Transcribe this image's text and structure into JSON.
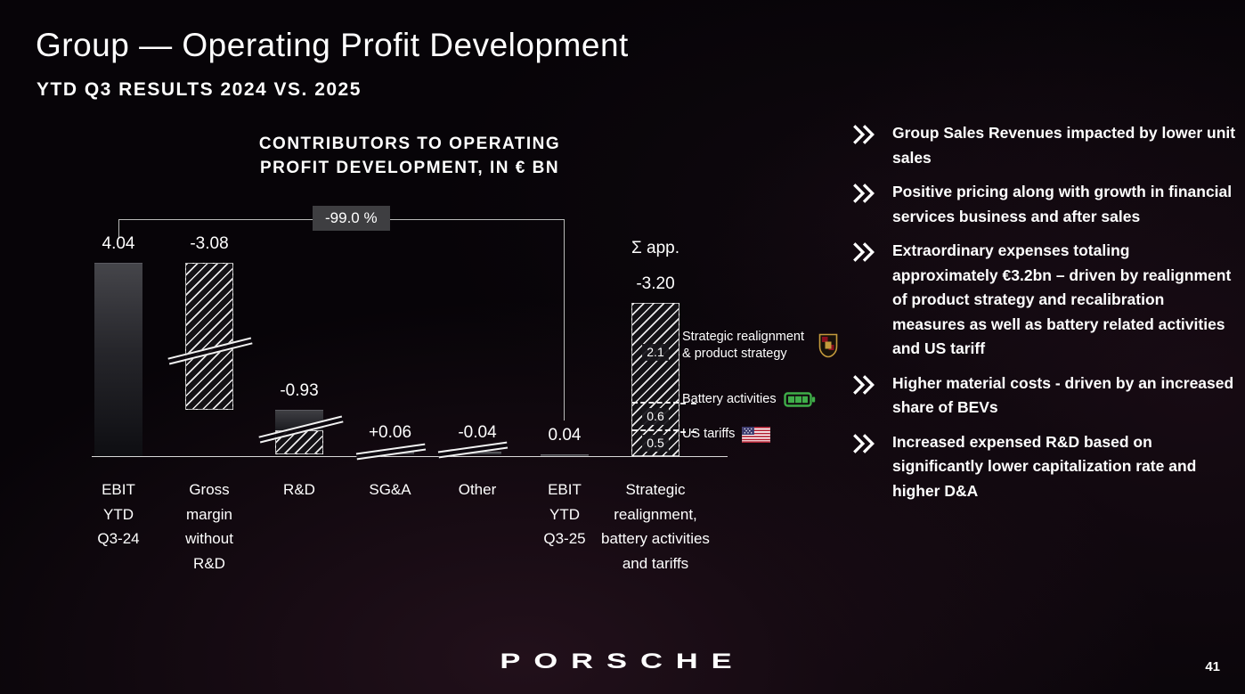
{
  "slide": {
    "title": "Group — Operating Profit Development",
    "subtitle": "YTD Q3 RESULTS 2024 VS. 2025",
    "page_number": "41",
    "logo_text": "PORSCHE"
  },
  "chart_data": {
    "type": "bar",
    "subtype": "waterfall",
    "title_lines": [
      "CONTRIBUTORS TO OPERATING",
      "PROFIT DEVELOPMENT, IN € BN"
    ],
    "unit": "€ bn",
    "categories": [
      "EBIT YTD Q3-24",
      "Gross margin without R&D",
      "R&D",
      "SG&A",
      "Other",
      "EBIT YTD Q3-25",
      "Strategic realignment, battery activities and tariffs"
    ],
    "values": [
      4.04,
      -3.08,
      -0.93,
      0.06,
      -0.04,
      0.04,
      -3.2
    ],
    "kinds": [
      "abs",
      "delta",
      "delta",
      "delta",
      "delta",
      "abs",
      "sum"
    ],
    "value_labels": [
      "4.04",
      "-3.08",
      "-0.93",
      "+0.06",
      "-0.04",
      "0.04",
      "-3.20"
    ],
    "sigma_label": "Σ app.",
    "bracket_label": "-99.0 %",
    "axis_range": [
      0,
      4.04
    ],
    "grid": false,
    "sum_bar": {
      "segments": [
        {
          "value": 2.1,
          "label": "2.1",
          "annotation": "Strategic realignment & product strategy",
          "icon": "porsche-crest-icon"
        },
        {
          "value": 0.6,
          "label": "0.6",
          "annotation": "Battery activities",
          "icon": "battery-icon"
        },
        {
          "value": 0.5,
          "label": "0.5",
          "annotation": "US tariffs",
          "icon": "us-flag-icon"
        }
      ]
    }
  },
  "bullets": [
    "Group Sales Revenues impacted by lower unit sales",
    "Positive pricing along with growth in financial services business and after sales",
    "Extraordinary expenses totaling approximately €3.2bn – driven by realignment of product strategy and recalibration measures as well as battery related activities and US tariff",
    "Higher material costs - driven by an increased share of BEVs",
    "Increased expensed R&D based on significantly lower capitalization rate and higher D&A"
  ],
  "colors": {
    "background": "#070408",
    "text": "#ffffff",
    "battery_green": "#3fae49",
    "bracket_box": "#3e3e41"
  }
}
